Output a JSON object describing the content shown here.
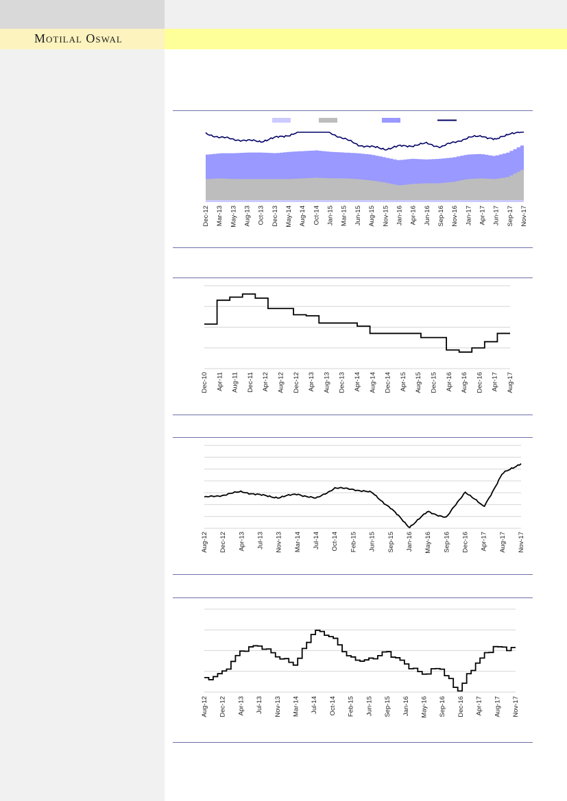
{
  "header": {
    "logo_text": "Motilal Oswal"
  },
  "colors": {
    "series_light": "#cccbff",
    "series_gray": "#bdbdbd",
    "series_mid": "#9999ff",
    "series_line": "#000066",
    "step_line": "#000000",
    "rule": "#6b6fa8"
  },
  "chart_data": [
    {
      "type": "area",
      "x_ticks": [
        "Dec-12",
        "Mar-13",
        "May-13",
        "Aug-13",
        "Oct-13",
        "Dec-13",
        "May-14",
        "Aug-14",
        "Oct-14",
        "Jan-15",
        "Mar-15",
        "Jun-15",
        "Aug-15",
        "Nov-15",
        "Jan-16",
        "Apr-16",
        "Jun-16",
        "Sep-16",
        "Nov-16",
        "Jan-17",
        "Apr-17",
        "Jun-17",
        "Sep-17",
        "Nov-17"
      ],
      "ylim": [
        0,
        100
      ],
      "series": [
        {
          "kind": "area",
          "color": "#cccbff",
          "values": [
            3,
            3,
            3,
            3,
            3,
            3,
            3,
            3,
            3,
            3,
            3,
            3,
            3,
            3,
            3,
            3,
            3,
            3,
            3,
            3,
            3,
            3,
            3,
            3
          ]
        },
        {
          "kind": "area",
          "color": "#bdbdbd",
          "values": [
            33,
            34,
            33,
            33,
            33,
            33,
            33,
            34,
            35,
            34,
            34,
            33,
            31,
            28,
            24,
            26,
            27,
            27,
            29,
            33,
            34,
            33,
            36,
            46
          ]
        },
        {
          "kind": "area",
          "color": "#9999ff",
          "values": [
            68,
            70,
            70,
            71,
            71,
            70,
            72,
            73,
            74,
            72,
            71,
            70,
            68,
            64,
            60,
            62,
            61,
            62,
            64,
            68,
            69,
            66,
            71,
            81
          ]
        },
        {
          "kind": "line",
          "color": "#000066",
          "values": [
            98,
            93,
            90,
            88,
            87,
            92,
            96,
            101,
            105,
            99,
            91,
            82,
            79,
            76,
            80,
            81,
            84,
            79,
            86,
            92,
            95,
            89,
            99,
            100
          ]
        }
      ]
    },
    {
      "type": "line",
      "style": "step",
      "x_ticks": [
        "Dec-10",
        "Apr-11",
        "Aug-11",
        "Dec-11",
        "Apr-12",
        "Aug-12",
        "Dec-12",
        "Apr-13",
        "Aug-13",
        "Dec-13",
        "Apr-14",
        "Aug-14",
        "Dec-14",
        "Apr-15",
        "Aug-15",
        "Dec-15",
        "Apr-16",
        "Aug-16",
        "Dec-16",
        "Apr-17",
        "Aug-17"
      ],
      "ylim": [
        0,
        4
      ],
      "gridlines": 4,
      "values": [
        2.15,
        3.3,
        3.45,
        3.6,
        3.4,
        2.9,
        2.9,
        2.6,
        2.55,
        2.2,
        2.2,
        2.2,
        2.05,
        1.7,
        1.7,
        1.7,
        1.7,
        1.5,
        1.5,
        0.9,
        0.8,
        1.0,
        1.3,
        1.7
      ]
    },
    {
      "type": "line",
      "x_ticks": [
        "Aug-12",
        "Dec-12",
        "Apr-13",
        "Jul-13",
        "Nov-13",
        "Mar-14",
        "Jul-14",
        "Oct-14",
        "Feb-15",
        "Jun-15",
        "Sep-15",
        "Jan-16",
        "May-16",
        "Sep-16",
        "Dec-16",
        "Apr-17",
        "Aug-17",
        "Nov-17"
      ],
      "ylim": [
        0,
        7
      ],
      "gridlines": 7,
      "values": [
        2.6,
        2.8,
        3.1,
        2.8,
        2.6,
        2.9,
        2.5,
        3.4,
        3.3,
        3.0,
        1.7,
        0.1,
        1.4,
        0.9,
        3.1,
        1.8,
        4.6,
        5.5
      ]
    },
    {
      "type": "line",
      "style": "step",
      "x_ticks": [
        "Aug-12",
        "Dec-12",
        "Apr-13",
        "Jul-13",
        "Nov-13",
        "Mar-14",
        "Jul-14",
        "Oct-14",
        "Feb-15",
        "Jun-15",
        "Sep-15",
        "Jan-16",
        "May-16",
        "Sep-16",
        "Dec-16",
        "Apr-17",
        "Aug-17",
        "Nov-17"
      ],
      "ylim": [
        0,
        4
      ],
      "gridlines": 4,
      "values": [
        0.7,
        1.0,
        1.9,
        2.2,
        1.8,
        1.4,
        2.9,
        2.6,
        1.7,
        1.6,
        1.9,
        1.3,
        0.9,
        1.3,
        0.0,
        1.3,
        2.2,
        2.2
      ]
    }
  ]
}
